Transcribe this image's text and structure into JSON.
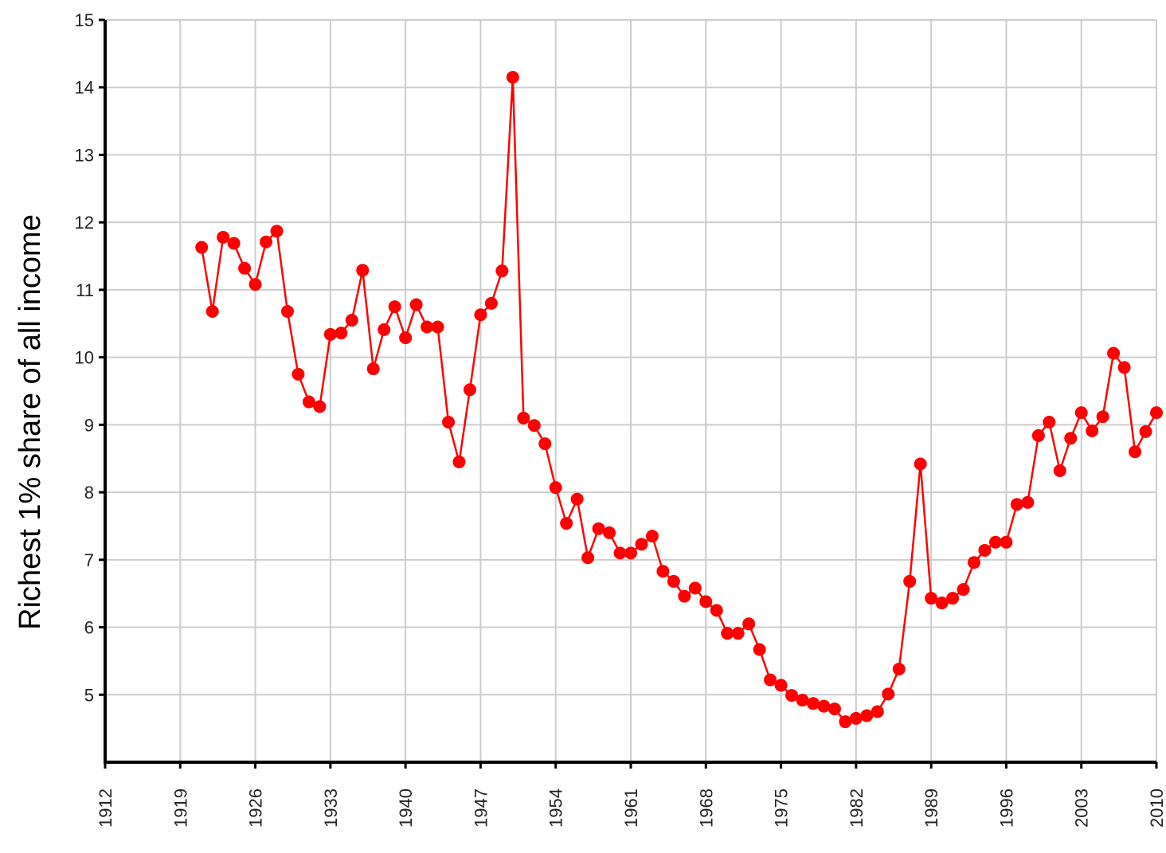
{
  "chart_data": {
    "type": "line",
    "ylabel": "Richest 1% share of all income",
    "x": [
      1921,
      1922,
      1923,
      1924,
      1925,
      1926,
      1927,
      1928,
      1929,
      1930,
      1931,
      1932,
      1933,
      1934,
      1935,
      1936,
      1937,
      1938,
      1939,
      1940,
      1941,
      1942,
      1943,
      1944,
      1945,
      1946,
      1947,
      1948,
      1949,
      1950,
      1951,
      1952,
      1953,
      1954,
      1955,
      1956,
      1957,
      1958,
      1959,
      1960,
      1961,
      1962,
      1963,
      1964,
      1965,
      1966,
      1967,
      1968,
      1969,
      1970,
      1971,
      1972,
      1973,
      1974,
      1975,
      1976,
      1977,
      1978,
      1979,
      1980,
      1981,
      1982,
      1983,
      1984,
      1985,
      1986,
      1987,
      1988,
      1989,
      1990,
      1991,
      1992,
      1993,
      1994,
      1995,
      1996,
      1997,
      1998,
      1999,
      2000,
      2001,
      2002,
      2003,
      2004,
      2005,
      2006,
      2007,
      2008,
      2009,
      2010
    ],
    "series": [
      {
        "color": "#ff0000",
        "values": [
          11.63,
          10.68,
          11.78,
          11.69,
          11.32,
          11.08,
          11.71,
          11.87,
          10.68,
          9.75,
          9.34,
          9.27,
          10.34,
          10.36,
          10.55,
          11.29,
          9.83,
          10.41,
          10.75,
          10.29,
          10.78,
          10.45,
          10.45,
          9.04,
          8.45,
          9.52,
          10.63,
          10.8,
          11.28,
          14.15,
          9.1,
          8.99,
          8.72,
          8.07,
          7.54,
          7.9,
          7.03,
          7.46,
          7.4,
          7.1,
          7.1,
          7.23,
          7.35,
          6.83,
          6.68,
          6.46,
          6.58,
          6.38,
          6.25,
          5.91,
          5.91,
          6.05,
          5.67,
          5.22,
          5.14,
          4.99,
          4.92,
          4.87,
          4.83,
          4.79,
          4.6,
          4.65,
          4.69,
          4.75,
          5.01,
          5.38,
          6.68,
          8.42,
          6.43,
          6.36,
          6.43,
          6.56,
          6.96,
          7.14,
          7.26,
          7.26,
          7.82,
          7.85,
          8.84,
          9.04,
          8.32,
          8.8,
          9.18,
          8.91,
          9.12,
          10.06,
          9.85,
          8.6,
          8.9,
          9.18
        ]
      }
    ],
    "xlim": [
      1912,
      2010
    ],
    "xticks": [
      1912,
      1919,
      1926,
      1933,
      1940,
      1947,
      1954,
      1961,
      1968,
      1975,
      1982,
      1989,
      1996,
      2003,
      2010
    ],
    "ylim": [
      4,
      15
    ],
    "yticks": [
      5,
      6,
      7,
      8,
      9,
      10,
      11,
      12,
      13,
      14,
      15
    ],
    "grid": true
  }
}
